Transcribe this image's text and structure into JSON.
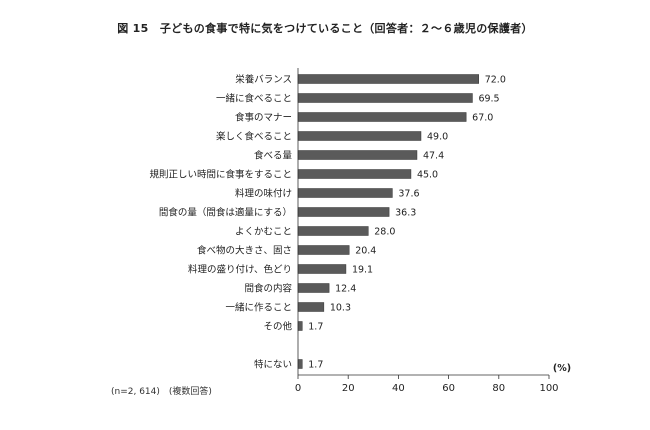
{
  "chart_data": {
    "type": "bar",
    "orientation": "horizontal",
    "title": "図 15　子どもの食事で特に気をつけていること（回答者：２～６歳児の保護者）",
    "unit_label": "(%)",
    "note": "(n=2, 614)　(複数回答)",
    "categories": [
      "栄養バランス",
      "一緒に食べること",
      "食事のマナー",
      "楽しく食べること",
      "食べる量",
      "規則正しい時間に食事をすること",
      "料理の味付け",
      "間食の量（間食は適量にする）",
      "よくかむこと",
      "食べ物の大きさ、固さ",
      "料理の盛り付け、色どり",
      "間食の内容",
      "一緒に作ること",
      "その他",
      "特にない"
    ],
    "values": [
      72.0,
      69.5,
      67.0,
      49.0,
      47.4,
      45.0,
      37.6,
      36.3,
      28.0,
      20.4,
      19.1,
      12.4,
      10.3,
      1.7,
      1.7
    ],
    "value_labels": [
      "72.0",
      "69.5",
      "67.0",
      "49.0",
      "47.4",
      "45.0",
      "37.6",
      "36.3",
      "28.0",
      "20.4",
      "19.1",
      "12.4",
      "10.3",
      "1.7",
      "1.7"
    ],
    "xlim": [
      0,
      100
    ],
    "x_ticks": [
      "0",
      "20",
      "40",
      "60",
      "80",
      "100"
    ],
    "grid": false,
    "bar_color": "#5a5a5a"
  }
}
